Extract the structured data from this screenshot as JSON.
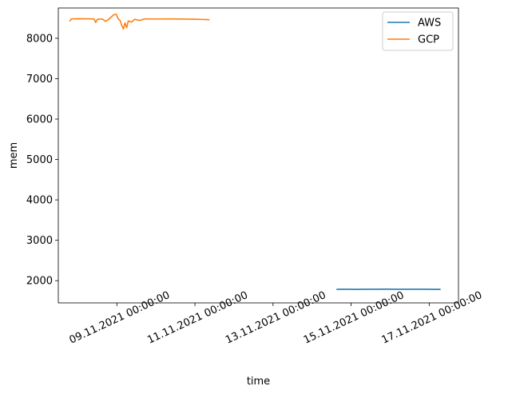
{
  "chart_data": {
    "type": "line",
    "title": "",
    "xlabel": "time",
    "ylabel": "mem",
    "x_type": "datetime",
    "xlim": [
      "2021-11-07 12:00",
      "2021-11-17 18:00"
    ],
    "ylim": [
      1450,
      8750
    ],
    "x_ticks": [
      "2021-11-09",
      "2021-11-11",
      "2021-11-13",
      "2021-11-15",
      "2021-11-17"
    ],
    "x_tick_labels": [
      "09.11.2021 00:00:00",
      "11.11.2021 00:00:00",
      "13.11.2021 00:00:00",
      "15.11.2021 00:00:00",
      "17.11.2021 00:00:00"
    ],
    "y_ticks": [
      2000,
      3000,
      4000,
      5000,
      6000,
      7000,
      8000
    ],
    "y_tick_labels": [
      "2000",
      "3000",
      "4000",
      "5000",
      "6000",
      "7000",
      "8000"
    ],
    "grid": false,
    "legend_position": "top-right",
    "series": [
      {
        "name": "AWS",
        "color": "#1f77b4",
        "points": [
          [
            "2021-11-14 15:00",
            1785
          ],
          [
            "2021-11-14 21:00",
            1787
          ],
          [
            "2021-11-15 03:00",
            1786
          ],
          [
            "2021-11-15 09:00",
            1788
          ],
          [
            "2021-11-15 15:00",
            1787
          ],
          [
            "2021-11-15 21:00",
            1789
          ],
          [
            "2021-11-16 03:00",
            1788
          ],
          [
            "2021-11-16 09:00",
            1787
          ],
          [
            "2021-11-16 15:00",
            1788
          ],
          [
            "2021-11-16 21:00",
            1787
          ],
          [
            "2021-11-17 03:00",
            1786
          ],
          [
            "2021-11-17 07:00",
            1786
          ]
        ]
      },
      {
        "name": "GCP",
        "color": "#ff7f0e",
        "points": [
          [
            "2021-11-07 19:00",
            8420
          ],
          [
            "2021-11-07 20:00",
            8480
          ],
          [
            "2021-11-08 00:00",
            8485
          ],
          [
            "2021-11-08 06:00",
            8482
          ],
          [
            "2021-11-08 10:00",
            8480
          ],
          [
            "2021-11-08 11:00",
            8390
          ],
          [
            "2021-11-08 12:00",
            8470
          ],
          [
            "2021-11-08 15:00",
            8478
          ],
          [
            "2021-11-08 17:00",
            8420
          ],
          [
            "2021-11-08 19:00",
            8470
          ],
          [
            "2021-11-08 22:00",
            8580
          ],
          [
            "2021-11-08 23:30",
            8600
          ],
          [
            "2021-11-09 01:00",
            8470
          ],
          [
            "2021-11-09 02:00",
            8440
          ],
          [
            "2021-11-09 03:00",
            8320
          ],
          [
            "2021-11-09 04:00",
            8230
          ],
          [
            "2021-11-09 05:00",
            8380
          ],
          [
            "2021-11-09 06:00",
            8260
          ],
          [
            "2021-11-09 07:00",
            8430
          ],
          [
            "2021-11-09 09:00",
            8400
          ],
          [
            "2021-11-09 11:00",
            8470
          ],
          [
            "2021-11-09 14:00",
            8440
          ],
          [
            "2021-11-09 17:00",
            8480
          ],
          [
            "2021-11-10 00:00",
            8478
          ],
          [
            "2021-11-10 08:00",
            8480
          ],
          [
            "2021-11-10 16:00",
            8477
          ],
          [
            "2021-11-11 00:00",
            8472
          ],
          [
            "2021-11-11 06:00",
            8465
          ],
          [
            "2021-11-11 09:00",
            8460
          ]
        ]
      }
    ]
  }
}
